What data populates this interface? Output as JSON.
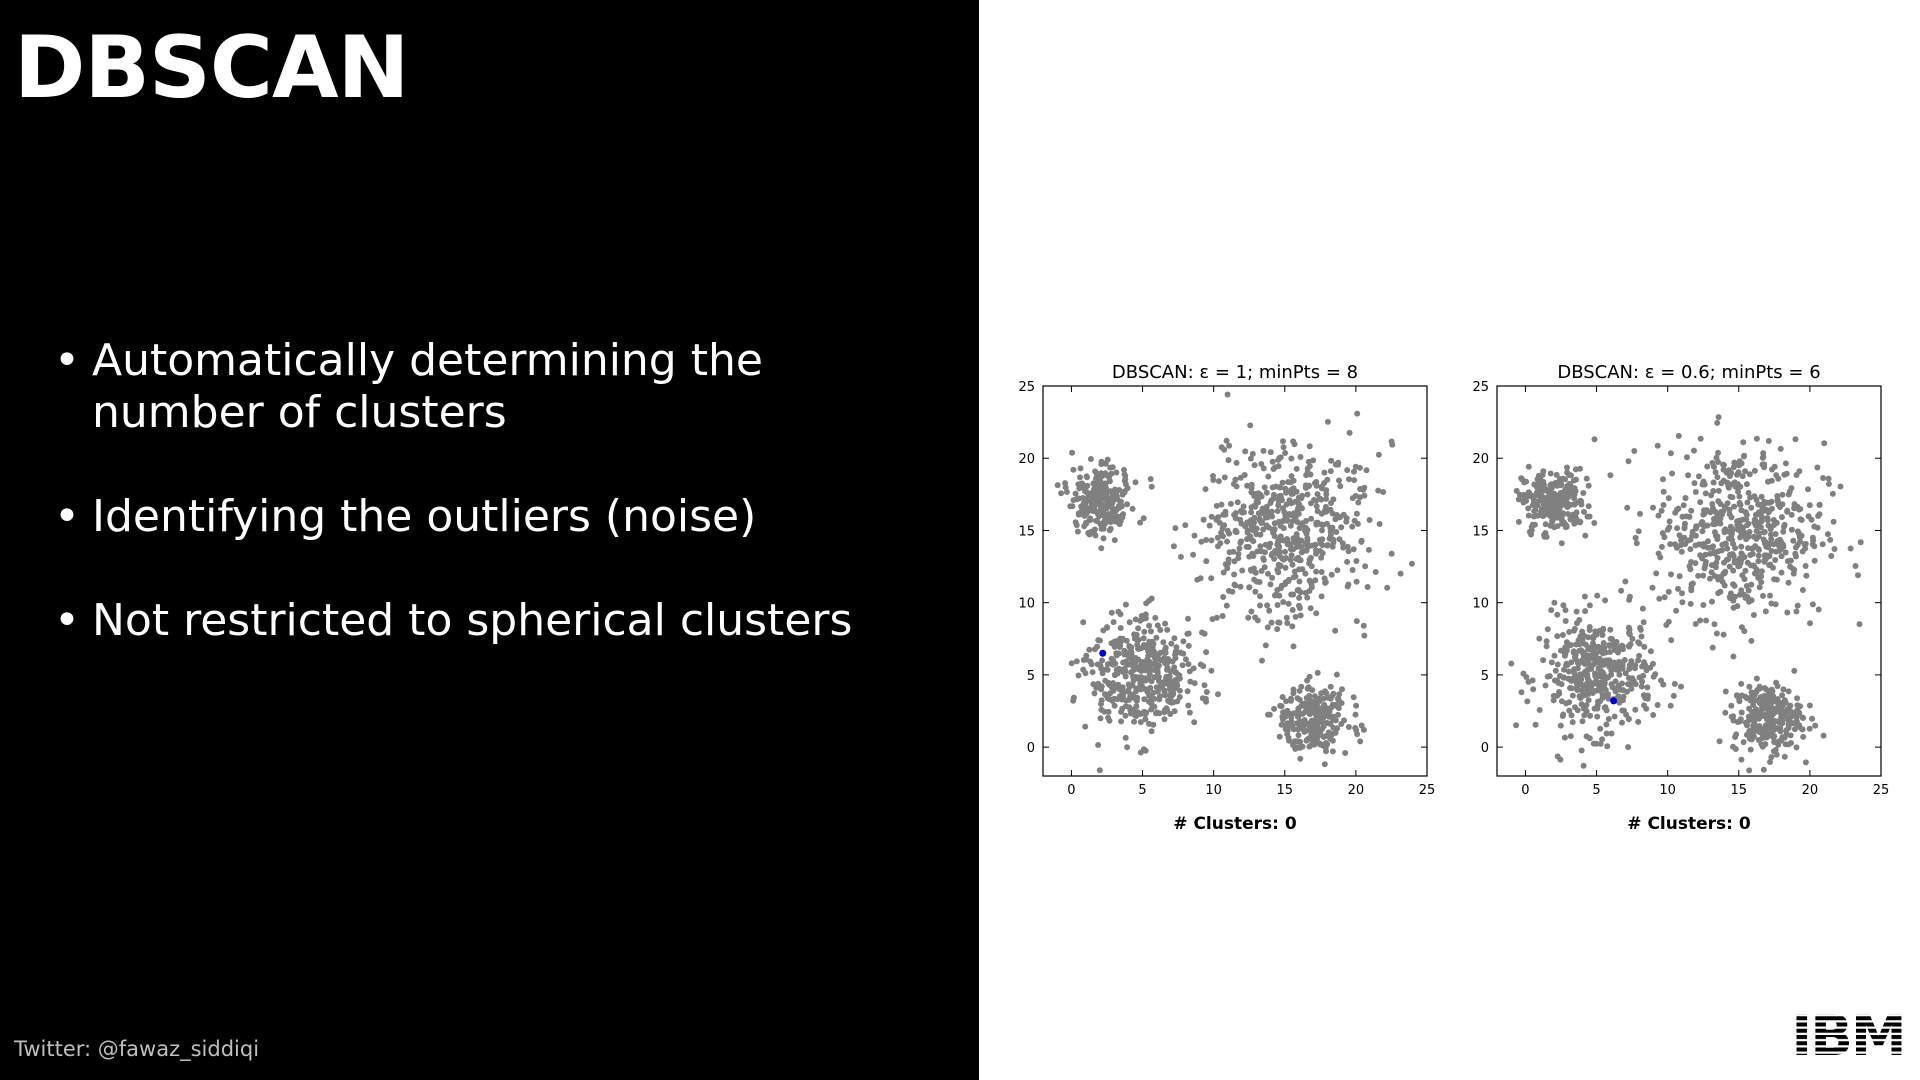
{
  "slide": {
    "title": "DBSCAN",
    "bullets": [
      [
        "Automatically determining the",
        "number of clusters"
      ],
      [
        "Identifying the outliers (noise)"
      ],
      [
        "Not restricted to spherical clusters"
      ]
    ],
    "footer": "Twitter: @fawaz_siddiqi",
    "logo_text": "IBM",
    "colors": {
      "left_background": "#000000",
      "point": "#808080",
      "highlight": "#0000cc"
    }
  },
  "chart_data": [
    {
      "type": "scatter",
      "title": "DBSCAN: ε = 1; minPts = 8",
      "caption": "# Clusters: 0",
      "xlim": [
        -2,
        25
      ],
      "ylim": [
        -2,
        25
      ],
      "xticks": [
        0,
        5,
        10,
        15,
        20,
        25
      ],
      "yticks": [
        0,
        5,
        10,
        15,
        20,
        25
      ],
      "highlight": [
        2.2,
        6.5
      ],
      "clusters": [
        {
          "center": [
            2,
            17
          ],
          "spread": 1.1,
          "count": 260
        },
        {
          "center": [
            5,
            5
          ],
          "spread": 2.0,
          "count": 420
        },
        {
          "center": [
            15,
            15
          ],
          "spread": 3.0,
          "count": 560
        },
        {
          "center": [
            17,
            2
          ],
          "spread": 1.2,
          "count": 260
        }
      ]
    },
    {
      "type": "scatter",
      "title": "DBSCAN: ε = 0.6; minPts = 6",
      "caption": "# Clusters: 0",
      "xlim": [
        -2,
        25
      ],
      "ylim": [
        -2,
        25
      ],
      "xticks": [
        0,
        5,
        10,
        15,
        20,
        25
      ],
      "yticks": [
        0,
        5,
        10,
        15,
        20,
        25
      ],
      "highlight": [
        6.2,
        3.2
      ],
      "clusters": [
        {
          "center": [
            2,
            17
          ],
          "spread": 1.1,
          "count": 260
        },
        {
          "center": [
            5,
            5
          ],
          "spread": 2.0,
          "count": 420
        },
        {
          "center": [
            15,
            15
          ],
          "spread": 3.0,
          "count": 560
        },
        {
          "center": [
            17,
            2
          ],
          "spread": 1.2,
          "count": 260
        }
      ]
    }
  ]
}
